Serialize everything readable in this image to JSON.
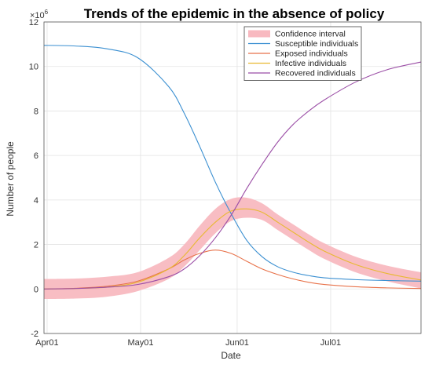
{
  "chart_data": {
    "type": "line",
    "title": "Trends of the epidemic in the absence of policy",
    "xlabel": "Date",
    "ylabel": "Number of people",
    "y_exponent_label": "×10",
    "y_exponent_power": "6",
    "ylim": [
      -2,
      12
    ],
    "yticks": [
      -2,
      0,
      2,
      4,
      6,
      8,
      10,
      12
    ],
    "xlim": [
      "2020-03-31",
      "2020-07-30"
    ],
    "xticks": [
      {
        "date": "2020-04-01",
        "label": "Apr01"
      },
      {
        "date": "2020-05-01",
        "label": "May01"
      },
      {
        "date": "2020-06-01",
        "label": "Jun01"
      },
      {
        "date": "2020-07-01",
        "label": "Jul01"
      }
    ],
    "grid": true,
    "legend_position": "top-right",
    "legend": [
      {
        "label": "Confidence interval",
        "color": "#f8b9c0",
        "kind": "band"
      },
      {
        "label": "Susceptible individuals",
        "color": "#3a8fd1",
        "kind": "line"
      },
      {
        "label": "Exposed individuals",
        "color": "#e8724a",
        "kind": "line"
      },
      {
        "label": "Infective individuals",
        "color": "#e8b932",
        "kind": "line"
      },
      {
        "label": "Recovered individuals",
        "color": "#9b4ea6",
        "kind": "line"
      }
    ],
    "x": [
      "2020-03-31",
      "2020-04-10",
      "2020-04-20",
      "2020-04-30",
      "2020-05-10",
      "2020-05-15",
      "2020-05-20",
      "2020-05-25",
      "2020-05-30",
      "2020-06-04",
      "2020-06-09",
      "2020-06-14",
      "2020-06-19",
      "2020-06-24",
      "2020-06-29",
      "2020-07-09",
      "2020-07-19",
      "2020-07-30"
    ],
    "series": [
      {
        "name": "Susceptible individuals",
        "color": "#3a8fd1",
        "values": [
          10.95,
          10.92,
          10.8,
          10.4,
          9.1,
          7.9,
          6.4,
          4.8,
          3.4,
          2.2,
          1.45,
          1.0,
          0.75,
          0.6,
          0.5,
          0.42,
          0.38,
          0.35
        ]
      },
      {
        "name": "Exposed individuals",
        "color": "#e8724a",
        "values": [
          0.0,
          0.03,
          0.12,
          0.35,
          0.9,
          1.3,
          1.6,
          1.75,
          1.6,
          1.25,
          0.9,
          0.65,
          0.45,
          0.3,
          0.2,
          0.1,
          0.05,
          0.02
        ]
      },
      {
        "name": "Infective individuals",
        "color": "#e8b932",
        "values": [
          0.0,
          0.02,
          0.08,
          0.3,
          0.9,
          1.5,
          2.3,
          3.0,
          3.5,
          3.6,
          3.45,
          3.0,
          2.55,
          2.1,
          1.7,
          1.1,
          0.7,
          0.4
        ]
      },
      {
        "name": "Recovered individuals",
        "color": "#9b4ea6",
        "values": [
          0.0,
          0.02,
          0.08,
          0.2,
          0.55,
          0.9,
          1.5,
          2.3,
          3.3,
          4.5,
          5.6,
          6.6,
          7.4,
          8.0,
          8.5,
          9.3,
          9.85,
          10.2
        ]
      }
    ],
    "confidence_interval": {
      "label": "Confidence interval",
      "color": "#f8b9c0",
      "lower": [
        -0.45,
        -0.43,
        -0.35,
        -0.1,
        0.45,
        1.0,
        1.75,
        2.5,
        3.05,
        3.2,
        3.1,
        2.65,
        2.2,
        1.75,
        1.35,
        0.75,
        0.35,
        0.02
      ],
      "upper": [
        0.45,
        0.47,
        0.55,
        0.75,
        1.4,
        2.0,
        2.85,
        3.6,
        4.05,
        4.1,
        3.85,
        3.35,
        2.9,
        2.45,
        2.05,
        1.45,
        1.05,
        0.75
      ]
    }
  }
}
